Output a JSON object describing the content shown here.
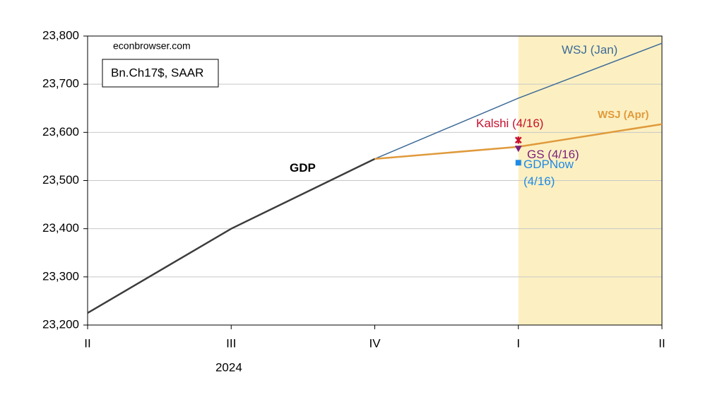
{
  "chart_data": {
    "type": "line",
    "annotations": [
      "econbrowser.com",
      "Bn.Ch17$, SAAR"
    ],
    "categories": [
      "II",
      "III",
      "IV",
      "I",
      "II"
    ],
    "x_group_label": "2024",
    "highlight": {
      "from": 3,
      "to": 4,
      "color": "#fcf0c2"
    },
    "ylim": [
      23200,
      23800
    ],
    "yticks": [
      {
        "value": 23200,
        "label": "23,200"
      },
      {
        "value": 23300,
        "label": "23,300"
      },
      {
        "value": 23400,
        "label": "23,400"
      },
      {
        "value": 23500,
        "label": "23,500"
      },
      {
        "value": 23600,
        "label": "23,600"
      },
      {
        "value": 23700,
        "label": "23,700"
      },
      {
        "value": 23800,
        "label": "23,800"
      }
    ],
    "grid": true,
    "series": [
      {
        "name": "GDP",
        "color": "#3c3c3c",
        "values": [
          23225,
          23400,
          23545,
          null,
          null
        ]
      },
      {
        "name": "WSJ (Jan)",
        "color": "#3d6a98",
        "values": [
          null,
          null,
          23545,
          23671,
          23785
        ]
      },
      {
        "name": "WSJ (Apr)",
        "color": "#e09a3c",
        "values": [
          null,
          null,
          23545,
          23570,
          23617
        ]
      },
      {
        "name": "Kalshi (4/16)",
        "color": "#c8102e",
        "marker": "star",
        "values": [
          null,
          null,
          null,
          23584,
          null
        ]
      },
      {
        "name": "GS (4/16)",
        "color": "#7b1f7b",
        "marker": "triangle",
        "values": [
          null,
          null,
          null,
          23565,
          null
        ]
      },
      {
        "name": "GDPNow (4/16)",
        "color": "#1e8ae6",
        "marker": "square",
        "values": [
          null,
          null,
          null,
          23537,
          null
        ]
      }
    ]
  }
}
